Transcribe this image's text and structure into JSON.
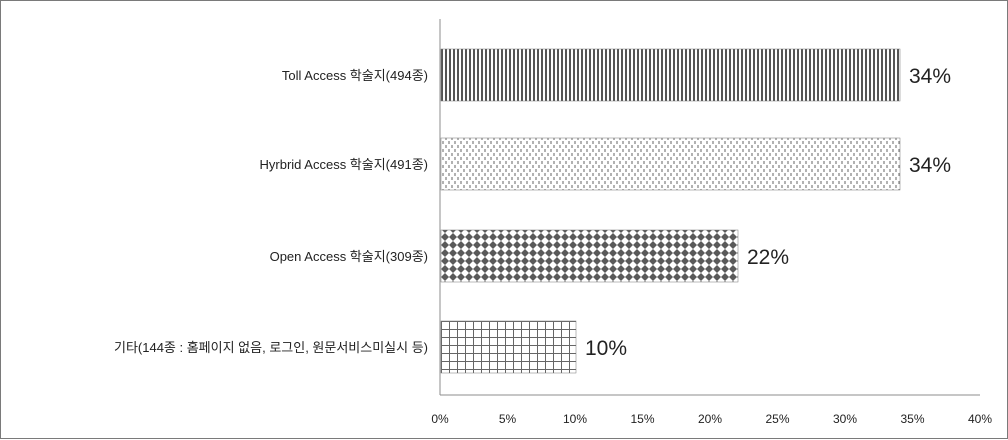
{
  "chart_data": {
    "type": "bar",
    "orientation": "horizontal",
    "categories": [
      "Toll Access 학술지(494종)",
      "Hyrbrid Access 학술지(491종)",
      "Open Access 학술지(309종)",
      "기타(144종 : 홈페이지 없음, 로그인, 원문서비스미실시 등)"
    ],
    "values": [
      34,
      34,
      22,
      10
    ],
    "data_labels": [
      "34%",
      "34%",
      "22%",
      "10%"
    ],
    "xlim": [
      0,
      40
    ],
    "x_ticks": [
      "0%",
      "5%",
      "10%",
      "15%",
      "20%",
      "25%",
      "30%",
      "35%",
      "40%"
    ],
    "grid": false,
    "legend": "none",
    "bar_patterns": [
      "vertical-stripes",
      "dashed-vertical",
      "diamonds",
      "grid"
    ],
    "colors": {
      "bar": "#555555",
      "axis": "#8c8c8c",
      "text": "#222222"
    }
  }
}
